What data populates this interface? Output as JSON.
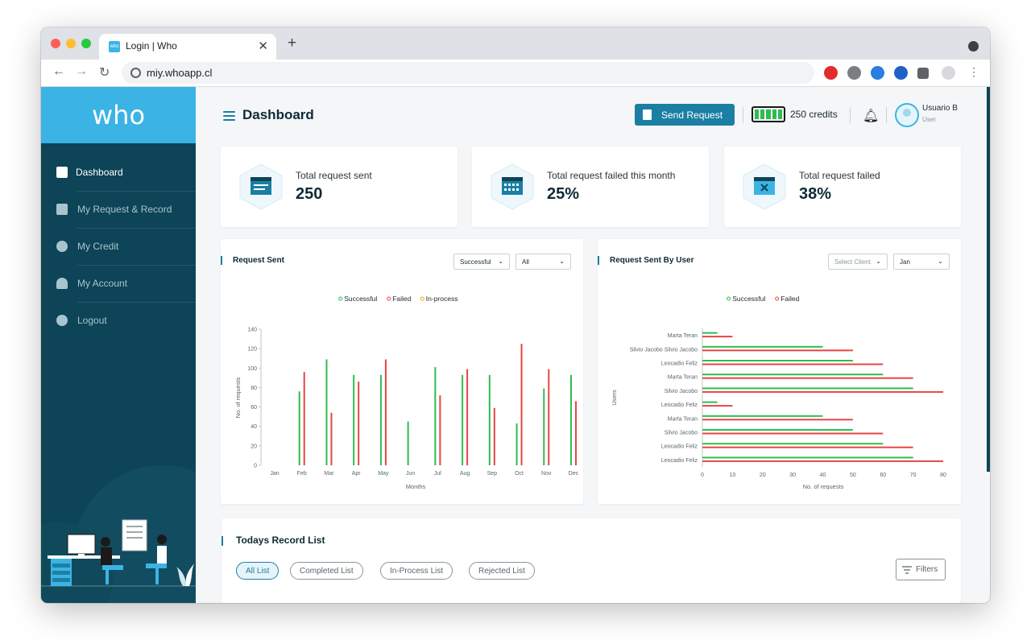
{
  "browser": {
    "tab_title": "Login | Who",
    "favicon_text": "who",
    "url": "miy.whoapp.cl"
  },
  "brand": {
    "logo": "who"
  },
  "sidebar": {
    "items": [
      {
        "label": "Dashboard",
        "icon": "grid-icon",
        "active": true
      },
      {
        "label": "My Request & Record",
        "icon": "document-icon",
        "active": false
      },
      {
        "label": "My Credit",
        "icon": "credit-icon",
        "active": false
      },
      {
        "label": "My Account",
        "icon": "user-icon",
        "active": false
      },
      {
        "label": "Logout",
        "icon": "logout-icon",
        "active": false
      }
    ]
  },
  "header": {
    "title": "Dashboard",
    "send_label": "Send Request",
    "credits": "250 credits",
    "user_name": "Usuario B",
    "user_role": "User"
  },
  "stats": [
    {
      "label": "Total request sent",
      "value": "250",
      "icon": "calendar-list-icon"
    },
    {
      "label": "Total request failed this month",
      "value": "25%",
      "icon": "calendar-grid-icon"
    },
    {
      "label": "Total request failed",
      "value": "38%",
      "icon": "calendar-x-icon"
    }
  ],
  "request_sent": {
    "title": "Request Sent",
    "filter_status": "Successful",
    "filter_scope": "All"
  },
  "by_user": {
    "title": "Request Sent By User",
    "filter_client": "Select Client",
    "filter_month": "Jan"
  },
  "records": {
    "title": "Todays Record List",
    "tabs": [
      "All List",
      "Completed List",
      "In-Process List",
      "Rejected List"
    ],
    "filters_label": "Filters"
  },
  "colors": {
    "accent": "#1a7fa3",
    "brand": "#3bb4e5",
    "sidebar": "#0d4457",
    "successful": "#2ebd4f",
    "failed": "#e84545",
    "in_process": "#f5a623"
  },
  "chart_data": [
    {
      "type": "bar",
      "orientation": "vertical",
      "xlabel": "Months",
      "ylabel": "No. of requests",
      "categories": [
        "Jan",
        "Feb",
        "Mar",
        "Apr",
        "May",
        "Jun",
        "Jul",
        "Aug",
        "Sep",
        "Oct",
        "Nov",
        "Dec"
      ],
      "ylim": [
        0,
        140
      ],
      "yticks": [
        0,
        20,
        40,
        60,
        80,
        100,
        120,
        140
      ],
      "legend": "top-center",
      "series": [
        {
          "name": "Successful",
          "color": "#2ebd4f",
          "values": [
            0,
            76,
            109,
            93,
            93,
            45,
            101,
            93,
            93,
            43,
            79,
            93
          ]
        },
        {
          "name": "Failed",
          "color": "#e84545",
          "values": [
            0,
            96,
            54,
            86,
            109,
            0,
            72,
            99,
            59,
            125,
            99,
            66
          ]
        },
        {
          "name": "In-process",
          "color": "#f5a623",
          "values": [
            0,
            0,
            0,
            0,
            0,
            0,
            0,
            0,
            0,
            0,
            0,
            0
          ]
        }
      ]
    },
    {
      "type": "bar",
      "orientation": "horizontal",
      "xlabel": "No. of requests",
      "ylabel": "Users",
      "categories": [
        "Marta Teran",
        "Silvio Jacobo Silvio Jacobo",
        "Leocadio Feliz",
        "Marta Teran",
        "Silvio Jacobo",
        "Leocadio Feliz",
        "Marta Teran",
        "Silvio Jacobo",
        "Leocadio Feliz",
        "Leocadio Feliz"
      ],
      "xlim": [
        0,
        80
      ],
      "xticks": [
        0,
        10,
        20,
        30,
        40,
        50,
        60,
        70,
        80
      ],
      "legend": "top-center",
      "series": [
        {
          "name": "Successful",
          "color": "#2ebd4f",
          "values": [
            5,
            40,
            50,
            60,
            70,
            5,
            40,
            50,
            60,
            70
          ]
        },
        {
          "name": "Failed",
          "color": "#e84545",
          "values": [
            10,
            50,
            60,
            70,
            80,
            10,
            50,
            60,
            70,
            80
          ]
        }
      ]
    }
  ]
}
